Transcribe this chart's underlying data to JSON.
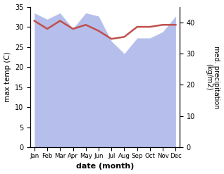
{
  "months": [
    "Jan",
    "Feb",
    "Mar",
    "Apr",
    "May",
    "Jun",
    "Jul",
    "Aug",
    "Sep",
    "Oct",
    "Nov",
    "Dec"
  ],
  "month_x": [
    0,
    1,
    2,
    3,
    4,
    5,
    6,
    7,
    8,
    9,
    10,
    11
  ],
  "precip_values": [
    43,
    41,
    43,
    38,
    43,
    42,
    34,
    30,
    35,
    35,
    37,
    42
  ],
  "temp_values": [
    31.5,
    29.5,
    31.5,
    29.5,
    30.5,
    29.0,
    27.0,
    27.5,
    30.0,
    30.0,
    30.5,
    30.5
  ],
  "precip_color": "#aab4e8",
  "temp_color": "#c0504d",
  "ylim_left": [
    0,
    35
  ],
  "ylim_right": [
    0,
    45
  ],
  "yticks_left": [
    0,
    5,
    10,
    15,
    20,
    25,
    30,
    35
  ],
  "yticks_right": [
    0,
    10,
    20,
    30,
    40
  ],
  "ylabel_left": "max temp (C)",
  "ylabel_right": "med. precipitation\n(kg/m2)",
  "xlabel": "date (month)",
  "bg_color": "#ffffff"
}
